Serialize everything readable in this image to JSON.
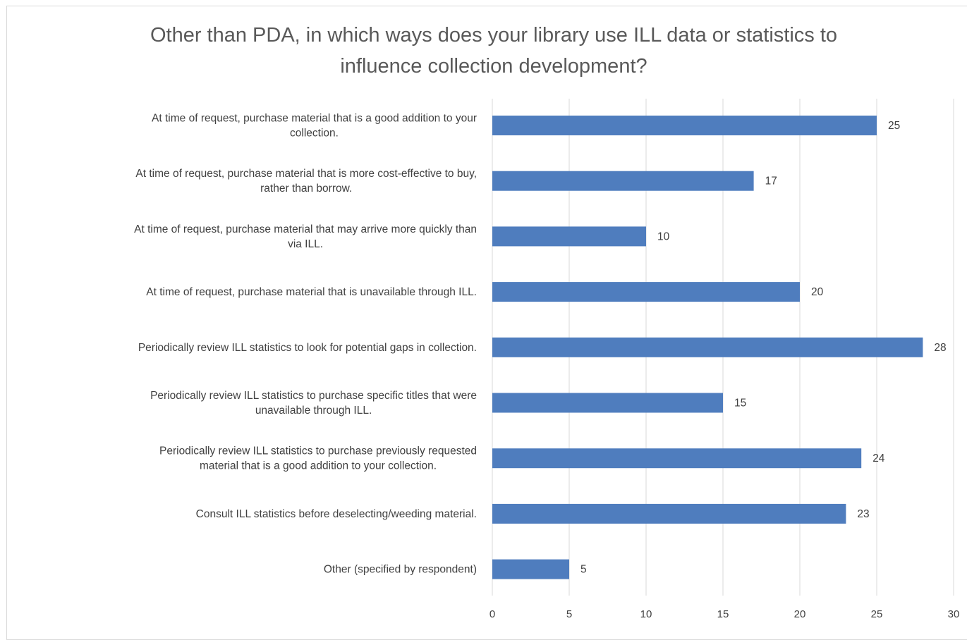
{
  "chart_data": {
    "type": "bar",
    "orientation": "horizontal",
    "title": "Other than PDA, in which ways does your library use ILL data or statistics to influence collection development?",
    "title_lines": [
      "Other than PDA, in which ways does your library use ILL data or statistics to",
      "influence collection development?"
    ],
    "categories": [
      [
        "At time of request, purchase material that is a good addition to your",
        "collection."
      ],
      [
        "At time of request, purchase material that is more cost-effective to buy,",
        "rather than borrow."
      ],
      [
        "At time of request, purchase material that may arrive more quickly than",
        "via ILL."
      ],
      [
        "At time of request, purchase material that is unavailable through ILL."
      ],
      [
        "Periodically review ILL statistics to look for potential gaps in collection."
      ],
      [
        "Periodically review ILL statistics to purchase specific titles that were",
        "unavailable through ILL."
      ],
      [
        "Periodically review ILL statistics to purchase previously requested",
        "material that is a good addition to your collection."
      ],
      [
        "Consult ILL statistics before deselecting/weeding material."
      ],
      [
        "Other (specified by respondent)"
      ]
    ],
    "values": [
      25,
      17,
      10,
      20,
      28,
      15,
      24,
      23,
      5
    ],
    "xlim": [
      0,
      30
    ],
    "xticks": [
      0,
      5,
      10,
      15,
      20,
      25,
      30
    ],
    "grid": "vertical",
    "data_labels": true,
    "bar_color": "#4f7dbe",
    "grid_color": "#d9d9d9",
    "text_color": "#404040"
  }
}
